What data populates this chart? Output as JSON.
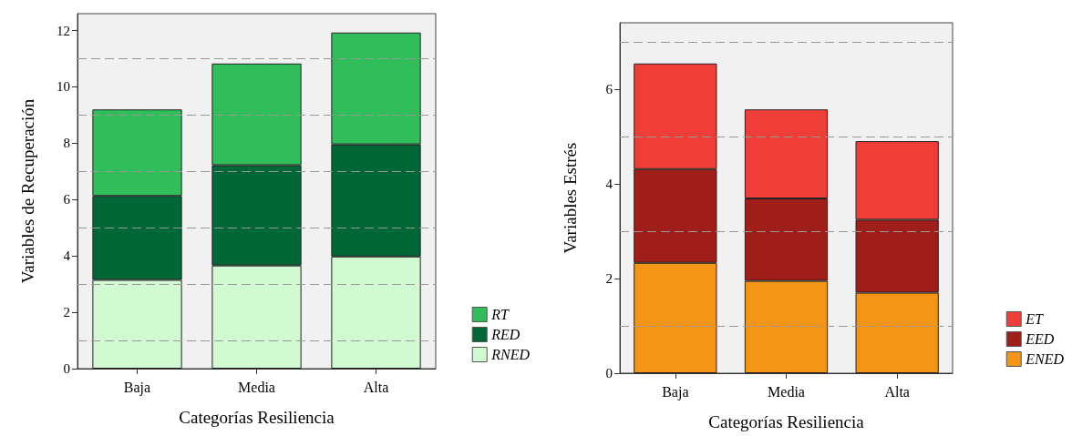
{
  "chart_data": [
    {
      "type": "bar",
      "stacked": true,
      "xlabel": "Categorías Resiliencia",
      "ylabel": "Variables de Recuperación",
      "categories": [
        "Baja",
        "Media",
        "Alta"
      ],
      "series": [
        {
          "name": "RNED",
          "color": "#d2fad2",
          "values": [
            3.15,
            3.66,
            3.98
          ]
        },
        {
          "name": "RED",
          "color": "#006837",
          "values": [
            2.98,
            3.56,
            3.98
          ]
        },
        {
          "name": "RT",
          "color": "#31be5a",
          "values": [
            3.07,
            3.61,
            3.97
          ]
        }
      ],
      "ylim": [
        0,
        12.6
      ],
      "yticks": [
        0,
        {
          "value": 1,
          "label": null
        },
        2,
        {
          "value": 3,
          "label": null
        },
        4,
        {
          "value": 5,
          "label": null
        },
        6,
        {
          "value": 7,
          "label": null
        },
        8,
        {
          "value": 9,
          "label": null
        },
        10,
        {
          "value": 11,
          "label": null
        },
        12
      ],
      "grid": "y",
      "legend": "bottom right"
    },
    {
      "type": "bar",
      "stacked": true,
      "xlabel": "Categorías Resiliencia",
      "ylabel": "Variables Estrés",
      "categories": [
        "Baja",
        "Media",
        "Alta"
      ],
      "series": [
        {
          "name": "ENED",
          "color": "#f39617",
          "values": [
            2.33,
            1.95,
            1.7
          ]
        },
        {
          "name": "EED",
          "color": "#a01e19",
          "values": [
            1.98,
            1.74,
            1.54
          ]
        },
        {
          "name": "ET",
          "color": "#ef3e38",
          "values": [
            2.23,
            1.88,
            1.66
          ]
        }
      ],
      "ylim": [
        0,
        7.4
      ],
      "yticks": [
        0,
        {
          "value": 1,
          "label": null
        },
        2,
        {
          "value": 3,
          "label": null
        },
        4,
        {
          "value": 5,
          "label": null
        },
        6,
        {
          "value": 7,
          "label": null
        }
      ],
      "grid": "y",
      "legend": "bottom right"
    }
  ]
}
